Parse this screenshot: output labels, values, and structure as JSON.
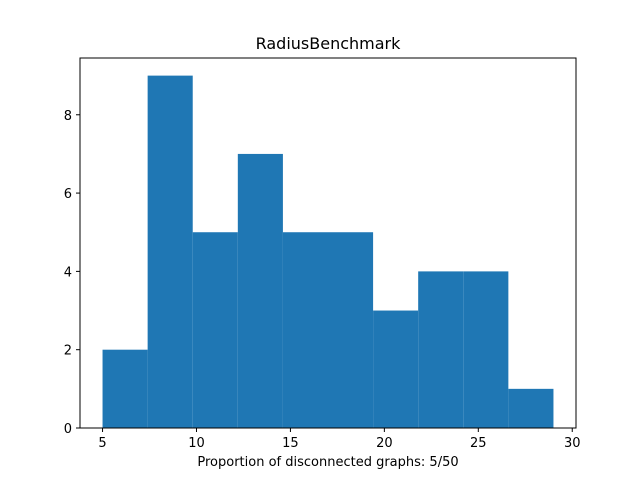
{
  "chart_data": {
    "type": "bar",
    "title": "RadiusBenchmark",
    "xlabel": "Proportion of disconnected graphs: 5/50",
    "ylabel": "",
    "bins": [
      {
        "x0": 5.0,
        "x1": 7.4,
        "count": 2
      },
      {
        "x0": 7.4,
        "x1": 9.8,
        "count": 9
      },
      {
        "x0": 9.8,
        "x1": 12.2,
        "count": 5
      },
      {
        "x0": 12.2,
        "x1": 14.6,
        "count": 7
      },
      {
        "x0": 14.6,
        "x1": 17.0,
        "count": 5
      },
      {
        "x0": 17.0,
        "x1": 19.4,
        "count": 5
      },
      {
        "x0": 19.4,
        "x1": 21.8,
        "count": 3
      },
      {
        "x0": 21.8,
        "x1": 24.2,
        "count": 4
      },
      {
        "x0": 24.2,
        "x1": 26.6,
        "count": 4
      },
      {
        "x0": 26.6,
        "x1": 29.0,
        "count": 1
      }
    ],
    "xlim": [
      3.8,
      30.2
    ],
    "ylim": [
      0,
      9.45
    ],
    "xticks": [
      5,
      10,
      15,
      20,
      25,
      30
    ],
    "yticks": [
      0,
      2,
      4,
      6,
      8
    ],
    "bar_color": "#1f77b4",
    "grid": false
  }
}
